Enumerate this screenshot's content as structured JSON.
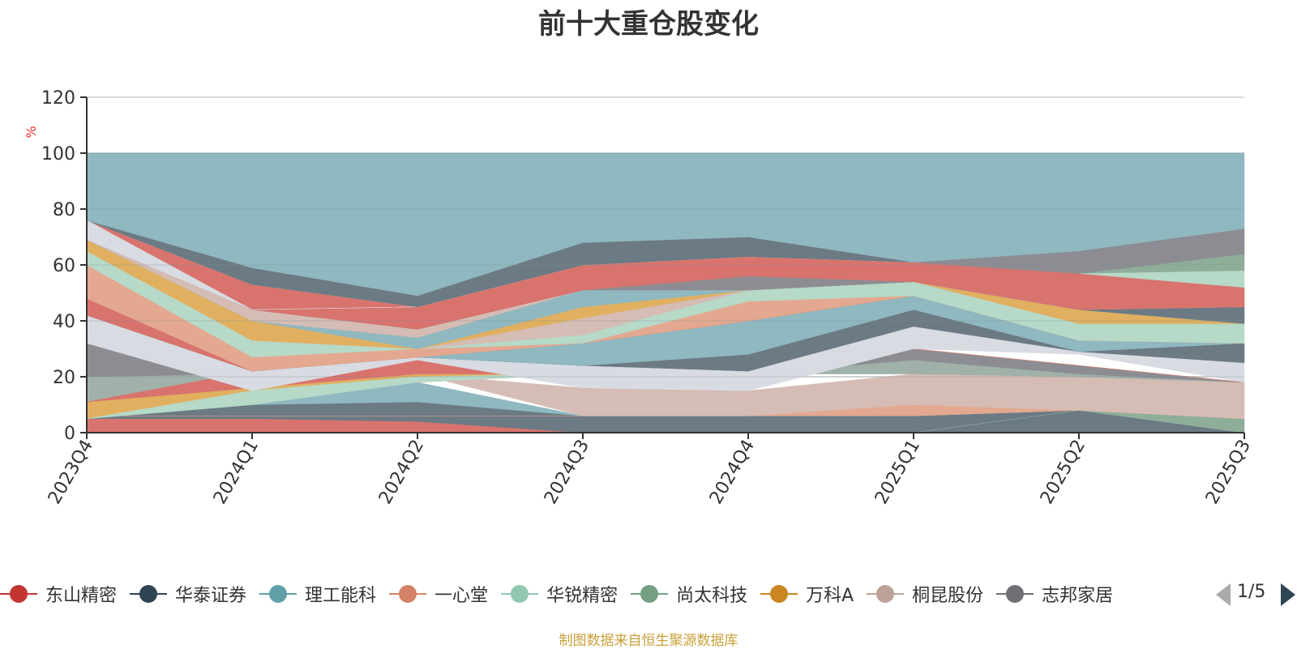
{
  "chart_data": {
    "type": "area",
    "title": "前十大重仓股变化",
    "ylabel": "%",
    "ylim": [
      0,
      120
    ],
    "yticks": [
      0,
      20,
      40,
      60,
      80,
      100,
      120
    ],
    "grid": true,
    "legend_position": "bottom",
    "categories": [
      "2023Q4",
      "2024Q1",
      "2024Q2",
      "2024Q3",
      "2024Q4",
      "2025Q1",
      "2025Q2",
      "2025Q3"
    ],
    "bands": [
      {
        "color": "#d9736e",
        "values": [
          [
            0,
            5
          ],
          [
            0,
            5
          ],
          [
            0,
            4
          ],
          [
            0,
            0
          ],
          [
            0,
            0
          ],
          [
            0,
            0
          ],
          [
            0,
            0
          ],
          [
            0,
            0
          ]
        ]
      },
      {
        "color": "#6c7a84",
        "values": [
          [
            5,
            5
          ],
          [
            5,
            10
          ],
          [
            4,
            11
          ],
          [
            0,
            6
          ],
          [
            0,
            6
          ],
          [
            0,
            6
          ],
          [
            0,
            8
          ],
          [
            0,
            0
          ]
        ]
      },
      {
        "color": "#8fb8c0",
        "values": [
          [
            5,
            5
          ],
          [
            10,
            10
          ],
          [
            11,
            18
          ],
          [
            6,
            6
          ],
          [
            6,
            6
          ],
          [
            6,
            6
          ],
          [
            8,
            8
          ],
          [
            0,
            0
          ]
        ]
      },
      {
        "color": "#8fae9a",
        "values": [
          [
            0,
            0
          ],
          [
            0,
            0
          ],
          [
            0,
            0
          ],
          [
            0,
            0
          ],
          [
            0,
            0
          ],
          [
            0,
            0
          ],
          [
            8,
            8
          ],
          [
            0,
            5
          ]
        ]
      },
      {
        "color": "#e3a88f",
        "values": [
          [
            6,
            6
          ],
          [
            6,
            6
          ],
          [
            6,
            6
          ],
          [
            6,
            6
          ],
          [
            6,
            6
          ],
          [
            6,
            10
          ],
          [
            8,
            8
          ],
          [
            5,
            5
          ]
        ]
      },
      {
        "color": "#d5bcb4",
        "values": [
          [
            22,
            22
          ],
          [
            21,
            21
          ],
          [
            21,
            21
          ],
          [
            6,
            16
          ],
          [
            6,
            15
          ],
          [
            10,
            21
          ],
          [
            8,
            20
          ],
          [
            5,
            18
          ]
        ]
      },
      {
        "color": "#9fb1a9",
        "values": [
          [
            11,
            20
          ],
          [
            21,
            21
          ],
          [
            21,
            21
          ],
          [
            21,
            21
          ],
          [
            21,
            21
          ],
          [
            21,
            26
          ],
          [
            20,
            21
          ],
          [
            18,
            18
          ]
        ]
      },
      {
        "color": "#8c8c92",
        "values": [
          [
            20,
            32
          ],
          [
            21,
            21
          ],
          [
            21,
            21
          ],
          [
            21,
            21
          ],
          [
            21,
            21
          ],
          [
            26,
            30
          ],
          [
            21,
            24
          ],
          [
            18,
            18
          ]
        ]
      },
      {
        "color": "#e0b060",
        "values": [
          [
            5,
            11
          ],
          [
            15,
            16
          ],
          [
            18,
            21
          ],
          [
            21,
            21
          ],
          [
            21,
            21
          ],
          [
            30,
            30
          ],
          [
            24,
            24
          ],
          [
            18,
            18
          ]
        ]
      },
      {
        "color": "#b6d9c8",
        "values": [
          [
            5,
            5
          ],
          [
            10,
            15
          ],
          [
            18,
            20
          ],
          [
            21,
            21
          ],
          [
            21,
            21
          ],
          [
            30,
            30
          ],
          [
            24,
            24
          ],
          [
            18,
            18
          ]
        ]
      },
      {
        "color": "#d9736e",
        "values": [
          [
            11,
            11
          ],
          [
            16,
            22
          ],
          [
            21,
            26
          ],
          [
            21,
            21
          ],
          [
            21,
            21
          ],
          [
            30,
            30
          ],
          [
            24,
            24
          ],
          [
            18,
            18
          ]
        ]
      },
      {
        "color": "#d8dbe2",
        "values": [
          [
            32,
            42
          ],
          [
            15,
            22
          ],
          [
            26,
            27
          ],
          [
            16,
            24
          ],
          [
            15,
            22
          ],
          [
            30,
            38
          ],
          [
            28,
            29
          ],
          [
            18,
            25
          ]
        ]
      },
      {
        "color": "#6c7a84",
        "values": [
          [
            42,
            42
          ],
          [
            22,
            22
          ],
          [
            27,
            27
          ],
          [
            24,
            24
          ],
          [
            22,
            28
          ],
          [
            38,
            44
          ],
          [
            29,
            29
          ],
          [
            25,
            32
          ]
        ]
      },
      {
        "color": "#8fb8c0",
        "values": [
          [
            42,
            42
          ],
          [
            22,
            22
          ],
          [
            27,
            27
          ],
          [
            24,
            32
          ],
          [
            28,
            40
          ],
          [
            44,
            49
          ],
          [
            29,
            33
          ],
          [
            32,
            32
          ]
        ]
      },
      {
        "color": "#d9736e",
        "values": [
          [
            42,
            48
          ],
          [
            22,
            22
          ],
          [
            27,
            27
          ],
          [
            32,
            32
          ],
          [
            40,
            40
          ],
          [
            49,
            49
          ],
          [
            33,
            33
          ],
          [
            32,
            32
          ]
        ]
      },
      {
        "color": "#e3a88f",
        "values": [
          [
            48,
            60
          ],
          [
            22,
            27
          ],
          [
            27,
            30
          ],
          [
            32,
            32
          ],
          [
            40,
            47
          ],
          [
            49,
            49
          ],
          [
            33,
            33
          ],
          [
            32,
            32
          ]
        ]
      },
      {
        "color": "#b6d9c8",
        "values": [
          [
            60,
            65
          ],
          [
            27,
            33
          ],
          [
            30,
            30
          ],
          [
            32,
            35
          ],
          [
            47,
            51
          ],
          [
            49,
            54
          ],
          [
            33,
            39
          ],
          [
            32,
            39
          ]
        ]
      },
      {
        "color": "#d5bcb4",
        "values": [
          [
            65,
            65
          ],
          [
            33,
            33
          ],
          [
            30,
            30
          ],
          [
            35,
            41
          ],
          [
            51,
            51
          ],
          [
            54,
            54
          ],
          [
            39,
            39
          ],
          [
            39,
            39
          ]
        ]
      },
      {
        "color": "#e0b060",
        "values": [
          [
            65,
            69
          ],
          [
            33,
            40
          ],
          [
            30,
            30
          ],
          [
            41,
            45
          ],
          [
            51,
            51
          ],
          [
            54,
            54
          ],
          [
            39,
            44
          ],
          [
            39,
            39
          ]
        ]
      },
      {
        "color": "#8fb8c0",
        "values": [
          [
            69,
            69
          ],
          [
            40,
            40
          ],
          [
            30,
            34
          ],
          [
            45,
            51
          ],
          [
            51,
            51
          ],
          [
            54,
            54
          ],
          [
            44,
            44
          ],
          [
            39,
            39
          ]
        ]
      },
      {
        "color": "#6c7a84",
        "values": [
          [
            69,
            69
          ],
          [
            40,
            40
          ],
          [
            34,
            34
          ],
          [
            51,
            51
          ],
          [
            51,
            51
          ],
          [
            54,
            54
          ],
          [
            44,
            44
          ],
          [
            39,
            45
          ]
        ]
      },
      {
        "color": "#8fb8c0",
        "values": [
          [
            69,
            69
          ],
          [
            40,
            40
          ],
          [
            34,
            34
          ],
          [
            51,
            51
          ],
          [
            51,
            51
          ],
          [
            54,
            54
          ],
          [
            44,
            44
          ],
          [
            45,
            45
          ]
        ]
      },
      {
        "color": "#d5bcb4",
        "values": [
          [
            69,
            69
          ],
          [
            40,
            44
          ],
          [
            34,
            37
          ],
          [
            51,
            51
          ],
          [
            51,
            51
          ],
          [
            54,
            54
          ],
          [
            44,
            44
          ],
          [
            45,
            45
          ]
        ]
      },
      {
        "color": "#8c8c92",
        "values": [
          [
            69,
            69
          ],
          [
            44,
            44
          ],
          [
            37,
            37
          ],
          [
            51,
            51
          ],
          [
            51,
            56
          ],
          [
            54,
            54
          ],
          [
            44,
            44
          ],
          [
            45,
            45
          ]
        ]
      },
      {
        "color": "#d9736e",
        "values": [
          [
            69,
            76
          ],
          [
            44,
            53
          ],
          [
            37,
            45
          ],
          [
            51,
            60
          ],
          [
            56,
            63
          ],
          [
            54,
            61
          ],
          [
            44,
            57
          ],
          [
            45,
            52
          ]
        ]
      },
      {
        "color": "#d8dbe2",
        "values": [
          [
            69,
            76
          ],
          [
            44,
            44
          ],
          [
            45,
            45
          ],
          [
            60,
            60
          ],
          [
            63,
            63
          ],
          [
            61,
            61
          ],
          [
            57,
            57
          ],
          [
            52,
            52
          ]
        ]
      },
      {
        "color": "#b6d9c8",
        "values": [
          [
            76,
            76
          ],
          [
            53,
            53
          ],
          [
            45,
            45
          ],
          [
            60,
            60
          ],
          [
            63,
            63
          ],
          [
            61,
            61
          ],
          [
            57,
            57
          ],
          [
            52,
            58
          ]
        ]
      },
      {
        "color": "#8fae9a",
        "values": [
          [
            76,
            76
          ],
          [
            53,
            53
          ],
          [
            45,
            45
          ],
          [
            60,
            60
          ],
          [
            63,
            63
          ],
          [
            61,
            61
          ],
          [
            57,
            57
          ],
          [
            58,
            64
          ]
        ]
      },
      {
        "color": "#6c7a84",
        "values": [
          [
            76,
            76
          ],
          [
            53,
            59
          ],
          [
            45,
            49
          ],
          [
            60,
            68
          ],
          [
            63,
            70
          ],
          [
            61,
            61
          ],
          [
            57,
            57
          ],
          [
            64,
            64
          ]
        ]
      },
      {
        "color": "#8c8c92",
        "values": [
          [
            76,
            76
          ],
          [
            59,
            59
          ],
          [
            49,
            49
          ],
          [
            68,
            68
          ],
          [
            70,
            70
          ],
          [
            61,
            61
          ],
          [
            57,
            65
          ],
          [
            64,
            73
          ]
        ]
      },
      {
        "color": "#8fb8c0",
        "values": [
          [
            76,
            100
          ],
          [
            59,
            100
          ],
          [
            49,
            100
          ],
          [
            68,
            100
          ],
          [
            70,
            100
          ],
          [
            61,
            100
          ],
          [
            65,
            100
          ],
          [
            73,
            100
          ]
        ]
      }
    ],
    "legend": [
      {
        "name": "东山精密",
        "color": "#c23531"
      },
      {
        "name": "华泰证券",
        "color": "#2f4554"
      },
      {
        "name": "理工能科",
        "color": "#61a0a8"
      },
      {
        "name": "一心堂",
        "color": "#d48265"
      },
      {
        "name": "华锐精密",
        "color": "#91c7ae"
      },
      {
        "name": "尚太科技",
        "color": "#749f83"
      },
      {
        "name": "万科A",
        "color": "#ca8622"
      },
      {
        "name": "桐昆股份",
        "color": "#bda29a"
      },
      {
        "name": "志邦家居",
        "color": "#6e7074"
      }
    ]
  },
  "pager": {
    "text": "1/5"
  },
  "source_note": "制图数据来自恒生聚源数据库"
}
